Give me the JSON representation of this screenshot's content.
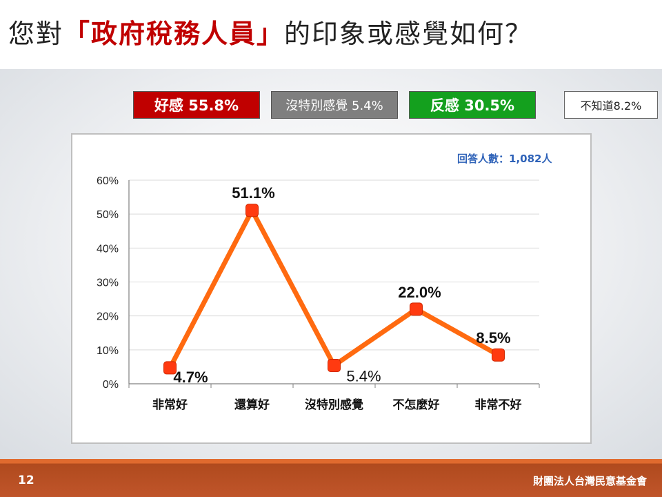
{
  "title": {
    "prefix": "您對",
    "highlight": "「政府稅務人員」",
    "suffix": "的印象或感覺如何？"
  },
  "summary": {
    "favorable": "好感 55.8%",
    "neutral": "沒特別感覺 5.4%",
    "unfavorable": "反感 30.5%",
    "dont_know": "不知道8.2%"
  },
  "respondents": "回答人數：1,082人",
  "chart_data": {
    "type": "line",
    "categories": [
      "非常好",
      "還算好",
      "沒特別感覺",
      "不怎麼好",
      "非常不好"
    ],
    "values": [
      4.7,
      51.1,
      5.4,
      22.0,
      8.5
    ],
    "data_labels": [
      "4.7%",
      "51.1%",
      "5.4%",
      "22.0%",
      "8.5%"
    ],
    "y_ticks": [
      "0%",
      "10%",
      "20%",
      "30%",
      "40%",
      "50%",
      "60%"
    ],
    "ylim": [
      0,
      60
    ],
    "grid": true,
    "line_color": "#ff6a10",
    "marker_color": "#ff3a10"
  },
  "footer": {
    "page_number": "12",
    "organization": "財團法人台灣民意基金會"
  }
}
